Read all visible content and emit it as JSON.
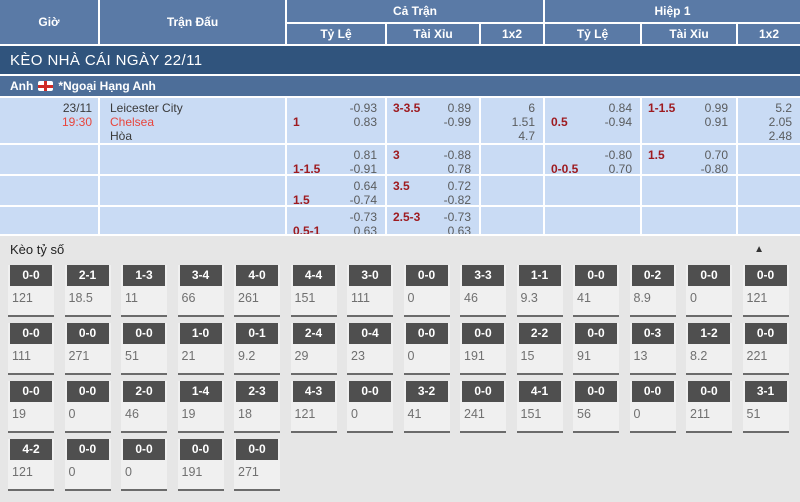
{
  "header": {
    "time": "Giờ",
    "match": "Trận Đấu",
    "full_time": "Cả Trận",
    "first_half": "Hiệp 1",
    "sub": {
      "handicap": "Tỷ Lệ",
      "over_under": "Tài Xỉu",
      "one_x_two": "1x2"
    }
  },
  "band": {
    "title": "KÈO NHÀ CÁI NGÀY 22/11"
  },
  "league": {
    "country": "Anh",
    "flag": "england-flag",
    "name": "*Ngoại Hạng Anh"
  },
  "colors": {
    "header_blue": "#5a7aa6",
    "band_blue": "#30547d",
    "league_blue": "#4d6e99",
    "row_blue": "#c9dbf4",
    "accent_red": "#e8453c",
    "handicap_red": "#9e1b20",
    "score_box_gray": "#4f4f4f"
  },
  "odds": {
    "match": {
      "date": "23/11",
      "time": "19:30",
      "home": "Leicester City",
      "away": "Chelsea",
      "draw": "Hòa"
    },
    "rows": [
      {
        "ft_hdp": {
          "l1": [
            "",
            "-0.93"
          ],
          "l2": [
            "1",
            "0.83"
          ]
        },
        "ft_ou": {
          "l1": [
            "3-3.5",
            "0.89"
          ],
          "l2": [
            "",
            "-0.99"
          ]
        },
        "ft_1x2": [
          "6",
          "1.51",
          "4.7"
        ],
        "h1_hdp": {
          "l1": [
            "",
            "0.84"
          ],
          "l2": [
            "0.5",
            "-0.94"
          ]
        },
        "h1_ou": {
          "l1": [
            "1-1.5",
            "0.99"
          ],
          "l2": [
            "",
            "0.91"
          ]
        },
        "h1_1x2": [
          "5.2",
          "2.05",
          "2.48"
        ]
      },
      {
        "ft_hdp": {
          "l1": [
            "",
            "0.81"
          ],
          "l2": [
            "1-1.5",
            "-0.91"
          ]
        },
        "ft_ou": {
          "l1": [
            "3",
            "-0.88"
          ],
          "l2": [
            "",
            "0.78"
          ]
        },
        "ft_1x2": [],
        "h1_hdp": {
          "l1": [
            "",
            "-0.80"
          ],
          "l2": [
            "0-0.5",
            "0.70"
          ]
        },
        "h1_ou": {
          "l1": [
            "1.5",
            "0.70"
          ],
          "l2": [
            "",
            "-0.80"
          ]
        },
        "h1_1x2": []
      },
      {
        "ft_hdp": {
          "l1": [
            "",
            "0.64"
          ],
          "l2": [
            "1.5",
            "-0.74"
          ]
        },
        "ft_ou": {
          "l1": [
            "3.5",
            "0.72"
          ],
          "l2": [
            "",
            "-0.82"
          ]
        },
        "ft_1x2": [],
        "h1_hdp": null,
        "h1_ou": null,
        "h1_1x2": []
      },
      {
        "ft_hdp": {
          "l1": [
            "",
            "-0.73"
          ],
          "l2": [
            "0.5-1",
            "0.63"
          ]
        },
        "ft_ou": {
          "l1": [
            "2.5-3",
            "-0.73"
          ],
          "l2": [
            "",
            "0.63"
          ]
        },
        "ft_1x2": [],
        "h1_hdp": null,
        "h1_ou": null,
        "h1_1x2": []
      }
    ]
  },
  "scores": {
    "title": "Kèo tỷ số",
    "collapse_icon": "▲",
    "columns": 14,
    "rows": [
      [
        [
          "0-0",
          "121"
        ],
        [
          "2-1",
          "18.5"
        ],
        [
          "1-3",
          "11"
        ],
        [
          "3-4",
          "66"
        ],
        [
          "4-0",
          "261"
        ],
        [
          "4-4",
          "151"
        ],
        [
          "3-0",
          "111"
        ],
        [
          "0-0",
          "0"
        ],
        [
          "3-3",
          "46"
        ],
        [
          "1-1",
          "9.3"
        ],
        [
          "0-0",
          "41"
        ],
        [
          "0-2",
          "8.9"
        ],
        [
          "0-0",
          "0"
        ],
        [
          "0-0",
          "121"
        ]
      ],
      [
        [
          "0-0",
          "111"
        ],
        [
          "0-0",
          "271"
        ],
        [
          "0-0",
          "51"
        ],
        [
          "1-0",
          "21"
        ],
        [
          "0-1",
          "9.2"
        ],
        [
          "2-4",
          "29"
        ],
        [
          "0-4",
          "23"
        ],
        [
          "0-0",
          "0"
        ],
        [
          "0-0",
          "191"
        ],
        [
          "2-2",
          "15"
        ],
        [
          "0-0",
          "91"
        ],
        [
          "0-3",
          "13"
        ],
        [
          "1-2",
          "8.2"
        ],
        [
          "0-0",
          "221"
        ]
      ],
      [
        [
          "0-0",
          "19"
        ],
        [
          "0-0",
          "0"
        ],
        [
          "2-0",
          "46"
        ],
        [
          "1-4",
          "19"
        ],
        [
          "2-3",
          "18"
        ],
        [
          "4-3",
          "121"
        ],
        [
          "0-0",
          "0"
        ],
        [
          "3-2",
          "41"
        ],
        [
          "0-0",
          "241"
        ],
        [
          "4-1",
          "151"
        ],
        [
          "0-0",
          "56"
        ],
        [
          "0-0",
          "0"
        ],
        [
          "0-0",
          "211"
        ],
        [
          "3-1",
          "51"
        ]
      ],
      [
        [
          "4-2",
          "121"
        ],
        [
          "0-0",
          "0"
        ],
        [
          "0-0",
          "0"
        ],
        [
          "0-0",
          "191"
        ],
        [
          "0-0",
          "271"
        ],
        null,
        null,
        null,
        null,
        null,
        null,
        null,
        null,
        null
      ]
    ]
  }
}
